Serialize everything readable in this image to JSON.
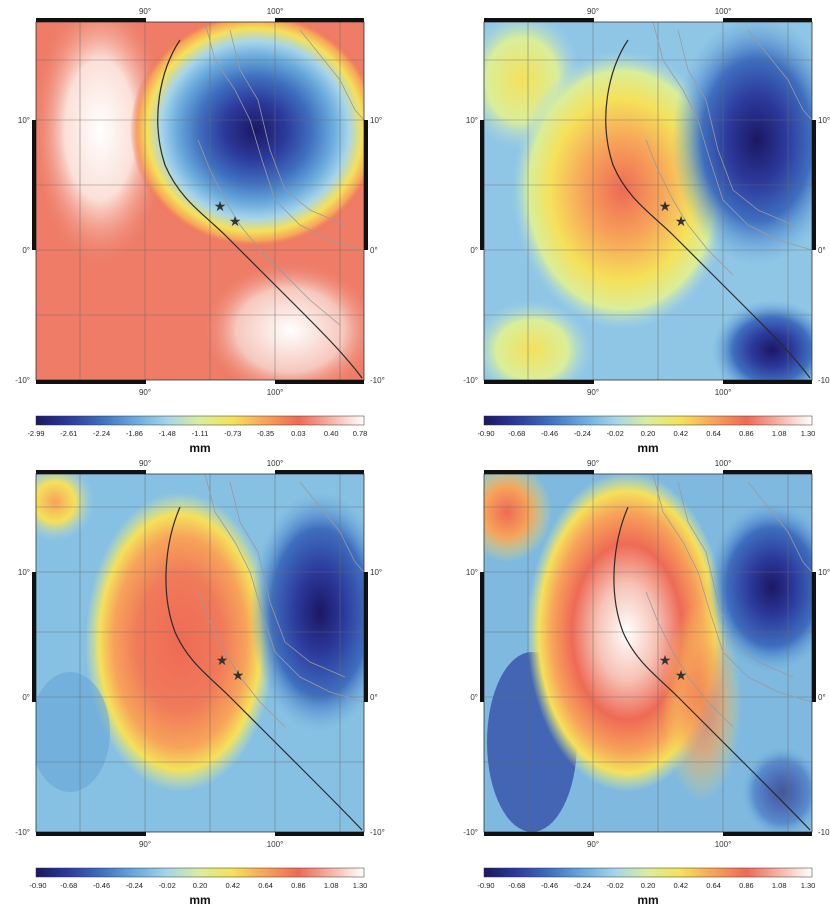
{
  "axes": {
    "lon_ticks": [
      "90°",
      "100°"
    ],
    "lat_ticks": [
      "10°",
      "0°",
      "-10°"
    ]
  },
  "colormap": [
    "#1b1764",
    "#2c3a9c",
    "#3f6fbf",
    "#69a9dc",
    "#a6d5ea",
    "#d9ee9a",
    "#f5e15a",
    "#f7a35a",
    "#ee6a55",
    "#f4b4a8",
    "#ffffff"
  ],
  "panels": [
    {
      "unit": "mm",
      "colorbar_ticks": [
        "-2.99",
        "-2.61",
        "-2.24",
        "-1.86",
        "-1.48",
        "-1.11",
        "-0.73",
        "-0.35",
        "0.03",
        "0.40",
        "0.78"
      ]
    },
    {
      "unit": "mm",
      "colorbar_ticks": [
        "-0.90",
        "-0.68",
        "-0.46",
        "-0.24",
        "-0.02",
        "0.20",
        "0.42",
        "0.64",
        "0.86",
        "1.08",
        "1.30"
      ]
    },
    {
      "unit": "mm",
      "colorbar_ticks": [
        "-0.90",
        "-0.68",
        "-0.46",
        "-0.24",
        "-0.02",
        "0.20",
        "0.42",
        "0.64",
        "0.86",
        "1.08",
        "1.30"
      ]
    },
    {
      "unit": "mm",
      "colorbar_ticks": [
        "-0.90",
        "-0.68",
        "-0.46",
        "-0.24",
        "-0.02",
        "0.20",
        "0.42",
        "0.64",
        "0.86",
        "1.08",
        "1.30"
      ]
    }
  ]
}
